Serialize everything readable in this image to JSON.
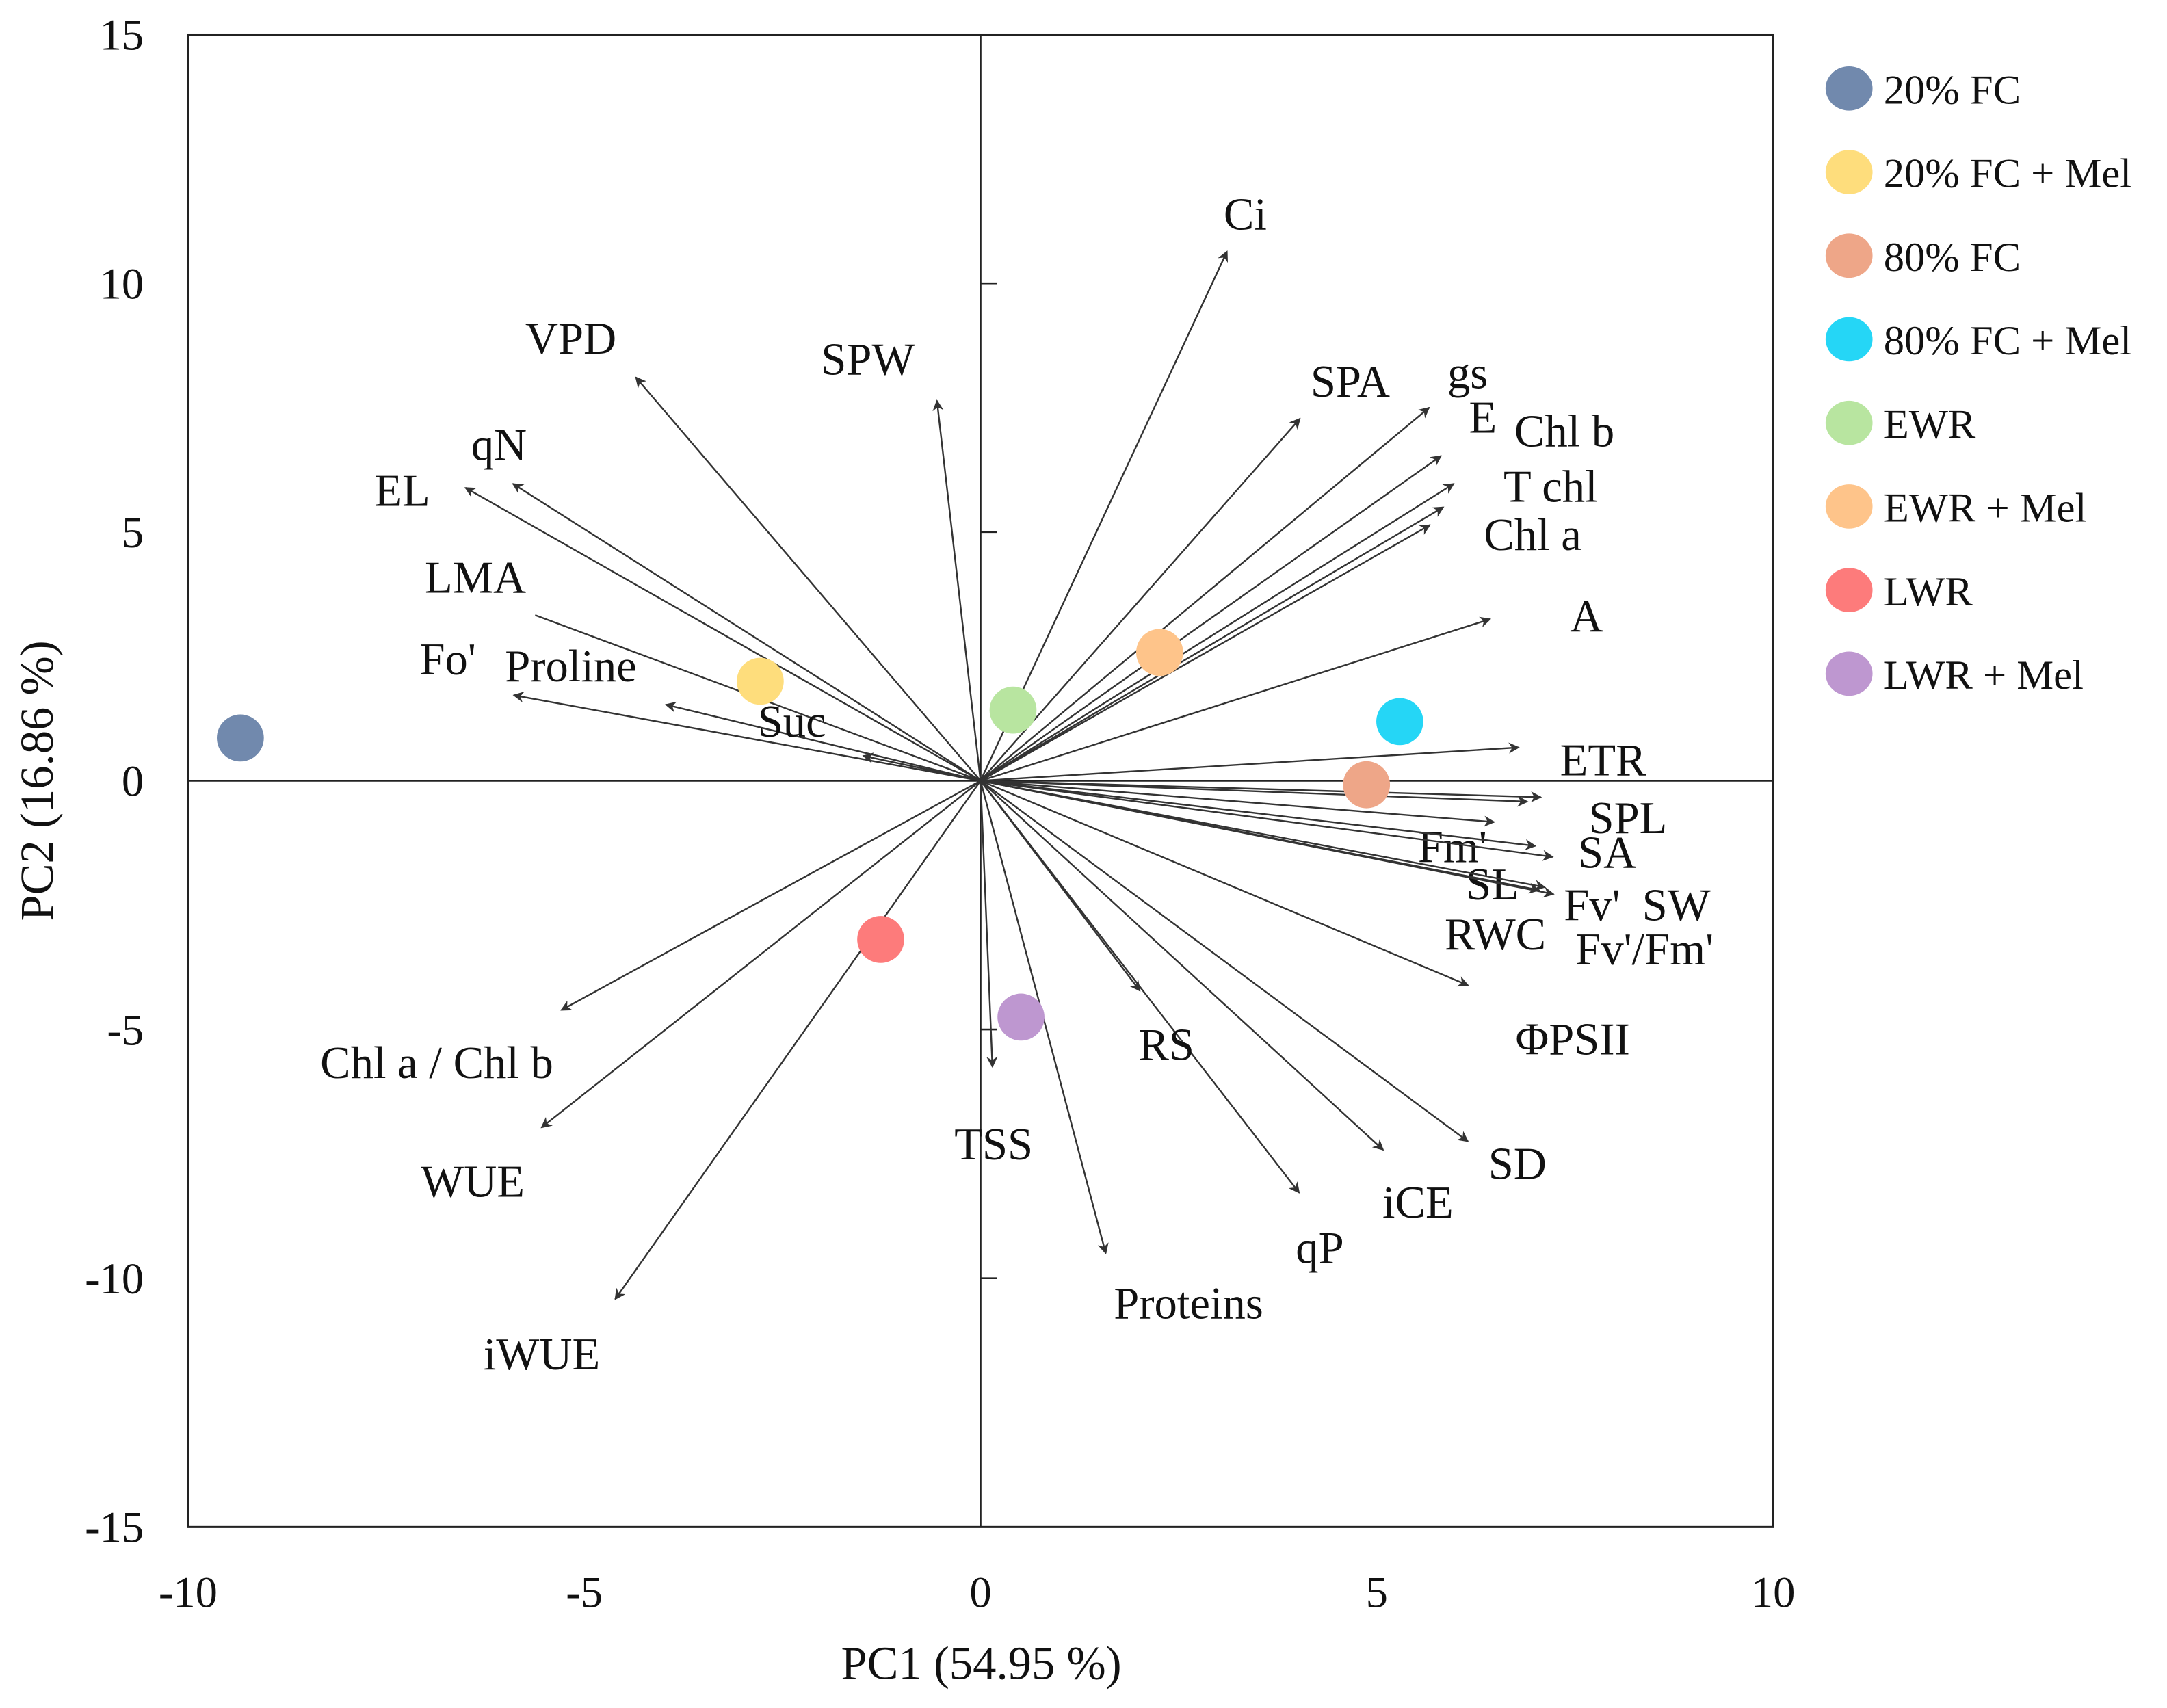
{
  "chart_data": {
    "type": "scatter",
    "title": "",
    "xlabel": "PC1 (54.95 %)",
    "ylabel": "PC2 (16.86 %)",
    "xlim": [
      -10,
      10
    ],
    "ylim": [
      -15,
      15
    ],
    "xticks": [
      "-10",
      "-5",
      "0",
      "5",
      "10"
    ],
    "yticks": [
      "15",
      "10",
      "5",
      "0",
      "-5",
      "-10",
      "-15"
    ],
    "xtick_values": [
      -10,
      -5,
      0,
      5,
      10
    ],
    "ytick_values": [
      15,
      10,
      5,
      0,
      -5,
      -10,
      -15
    ],
    "legend_position": "right",
    "series": [
      {
        "name": "20% FC",
        "color": "#7189ad",
        "x": -9.34,
        "y": 0.86
      },
      {
        "name": "20% FC + Mel",
        "color": "#fedd7c",
        "x": -2.78,
        "y": 2.0
      },
      {
        "name": "80% FC",
        "color": "#ee a688",
        "x": 4.87,
        "y": -0.08
      },
      {
        "name": "80% FC + Mel",
        "color": "#25d6f6",
        "x": 5.29,
        "y": 1.19
      },
      {
        "name": "EWR",
        "color": "#b8e5a0",
        "x": 0.41,
        "y": 1.42
      },
      {
        "name": "EWR + Mel",
        "color": "#fec48a",
        "x": 2.26,
        "y": 2.58
      },
      {
        "name": "LWR",
        "color": "#fd7b7b",
        "x": -1.26,
        "y": -3.19
      },
      {
        "name": "LWR + Mel",
        "color": "#be97d0",
        "x": 0.51,
        "y": -4.75
      }
    ],
    "loadings": [
      {
        "name": "Ci",
        "x": 3.11,
        "y": 10.64
      },
      {
        "name": "SPW",
        "x": -0.55,
        "y": 7.64
      },
      {
        "name": "VPD",
        "x": -4.35,
        "y": 8.11
      },
      {
        "name": "qN",
        "x": -5.9,
        "y": 5.97
      },
      {
        "name": "EL",
        "x": -6.5,
        "y": 5.89
      },
      {
        "name": "LMA",
        "x": -5.62,
        "y": 3.33
      },
      {
        "name": "Fo'",
        "x": -5.89,
        "y": 1.72
      },
      {
        "name": "Proline",
        "x": -3.97,
        "y": 1.53
      },
      {
        "name": "Suc",
        "x": -1.48,
        "y": 0.5
      },
      {
        "name": "SPA",
        "x": 4.03,
        "y": 7.28
      },
      {
        "name": "gs",
        "x": 5.67,
        "y": 5.14
      },
      {
        "name": "E",
        "x": 5.66,
        "y": 7.5
      },
      {
        "name": "Chl b",
        "x": 5.81,
        "y": 6.53
      },
      {
        "name": "T chl",
        "x": 5.97,
        "y": 5.97
      },
      {
        "name": "Chl a",
        "x": 5.84,
        "y": 5.5
      },
      {
        "name": "A",
        "x": 6.43,
        "y": 3.25
      },
      {
        "name": "ETR",
        "x": 6.79,
        "y": 0.67
      },
      {
        "name": "SPL",
        "x": 7.07,
        "y": -0.33
      },
      {
        "name": "Fm'",
        "x": 6.48,
        "y": -0.83
      },
      {
        "name": "SA",
        "x": 7.22,
        "y": -1.53
      },
      {
        "name": "SL",
        "x": 7.0,
        "y": -1.31
      },
      {
        "name": "Fv'",
        "x": 7.12,
        "y": -2.14
      },
      {
        "name": "SW",
        "x": 6.9,
        "y": -0.42
      },
      {
        "name": "RWC",
        "x": 7.05,
        "y": -2.2
      },
      {
        "name": "Fv'/Fm'",
        "x": 7.23,
        "y": -2.28
      },
      {
        "name": "ΦPSII",
        "x": 6.15,
        "y": -4.11
      },
      {
        "name": "SD",
        "x": 6.15,
        "y": -7.25
      },
      {
        "name": "iCE",
        "x": 5.08,
        "y": -7.42
      },
      {
        "name": "qP",
        "x": 4.02,
        "y": -8.28
      },
      {
        "name": "RS",
        "x": 2.01,
        "y": -4.22
      },
      {
        "name": "Proteins",
        "x": 1.58,
        "y": -9.5
      },
      {
        "name": "TSS",
        "x": 0.15,
        "y": -5.75
      },
      {
        "name": "iWUE",
        "x": -4.61,
        "y": -10.42
      },
      {
        "name": "WUE",
        "x": -5.54,
        "y": -6.97
      },
      {
        "name": "Chl a / Chl b",
        "x": -5.29,
        "y": -4.61
      }
    ]
  }
}
